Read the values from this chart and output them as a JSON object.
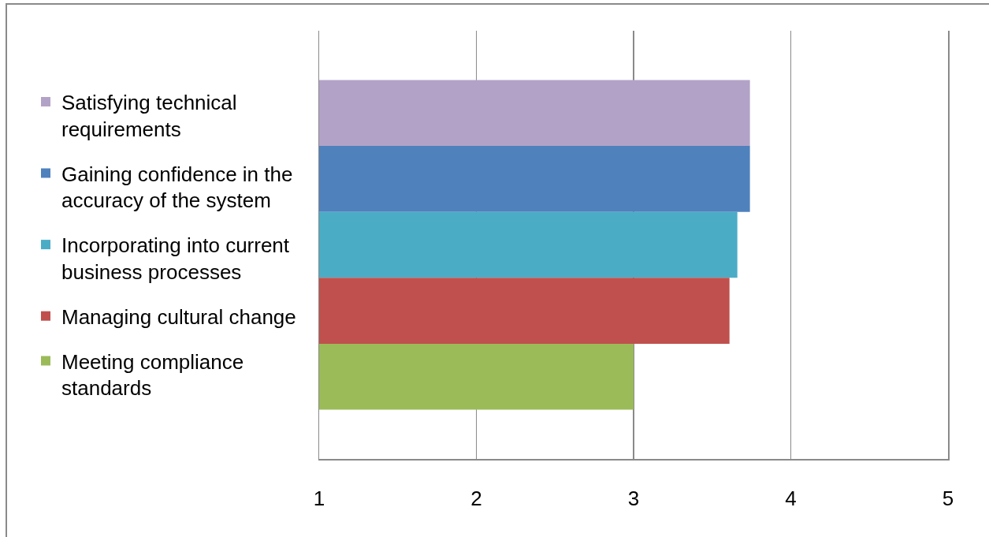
{
  "chart_data": {
    "type": "bar",
    "orientation": "horizontal",
    "categories": [
      null
    ],
    "series": [
      {
        "name": "Satisfying technical requirements",
        "color": "#b3a2c7",
        "values": [
          3.74
        ]
      },
      {
        "name": "Gaining confidence in the accuracy of the system",
        "color": "#4f81bd",
        "values": [
          3.74
        ]
      },
      {
        "name": "Incorporating into current business processes",
        "color": "#4bacc6",
        "values": [
          3.66
        ]
      },
      {
        "name": "Managing cultural change",
        "color": "#c0504d",
        "values": [
          3.61
        ]
      },
      {
        "name": "Meeting compliance standards",
        "color": "#9bbb59",
        "values": [
          3.0
        ]
      }
    ],
    "xlim": [
      1,
      5
    ],
    "xticks": [
      1,
      2,
      3,
      4,
      5
    ],
    "grid": "x",
    "legend": "left",
    "tick_labels": "x"
  }
}
